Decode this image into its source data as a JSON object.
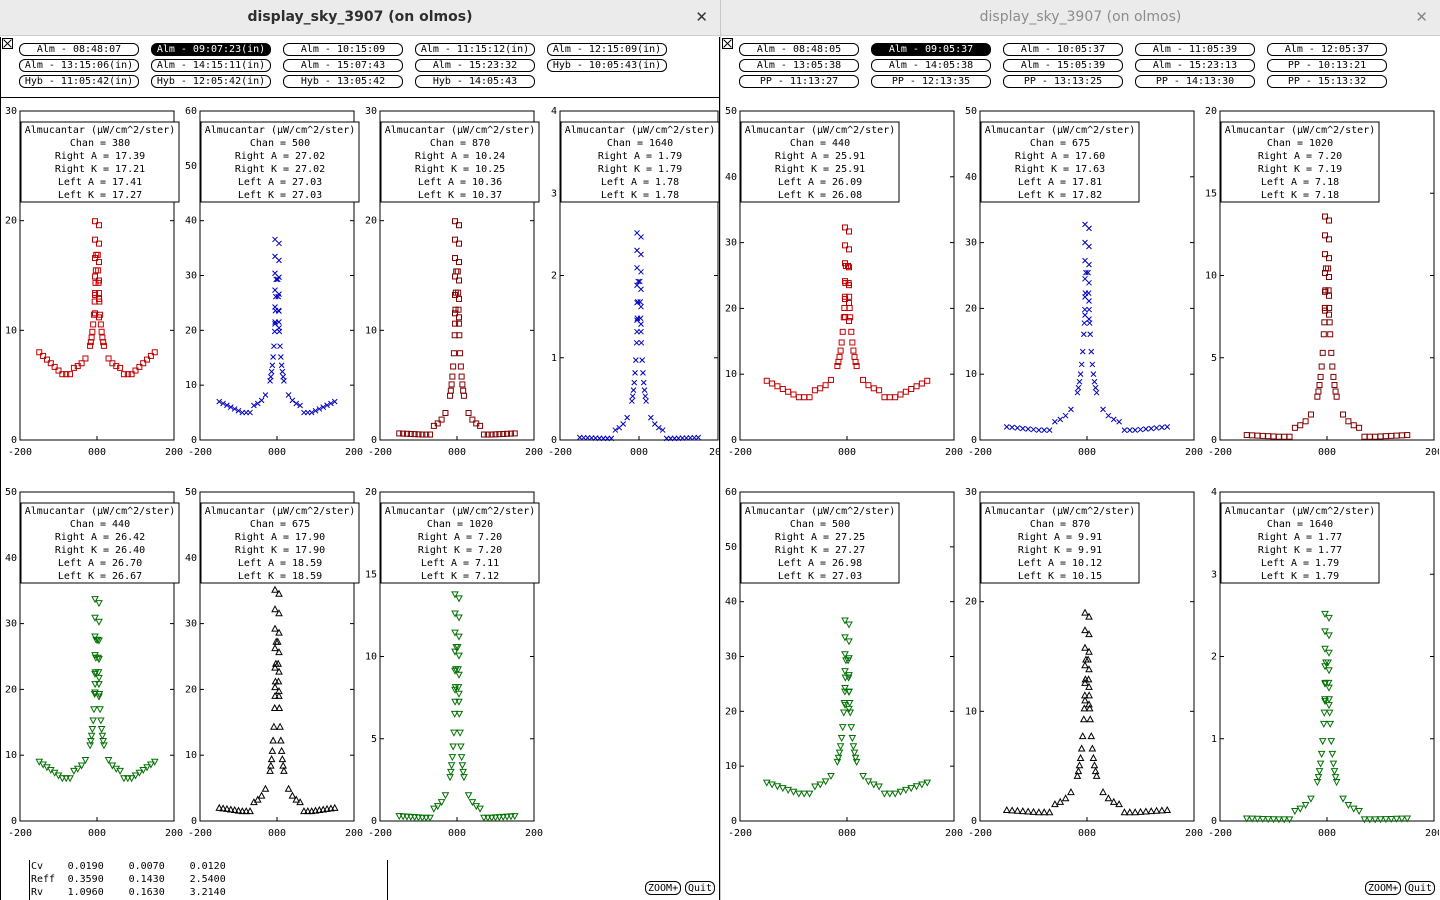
{
  "left": {
    "title": "display_sky_3907 (on olmos)",
    "close": "✕",
    "zoom": "ZOOM+",
    "quit": "Quit",
    "buttons": [
      "Alm - 08:48:07",
      "Alm - 09:07:23(in)",
      "Alm - 10:15:09",
      "Alm - 11:15:12(in)",
      "Alm - 12:15:09(in)",
      "Alm - 13:15:06(in)",
      "Alm - 14:15:11(in)",
      "Alm - 15:07:43",
      "Alm - 15:23:32",
      "Hyb - 10:05:43(in)",
      "Hyb - 11:05:42(in)",
      "Hyb - 12:05:42(in)",
      "Hyb - 13:05:42",
      "Hyb - 14:05:43"
    ],
    "selected": 1,
    "stats": [
      [
        "Cv",
        "0.0190",
        "0.0070",
        "0.0120"
      ],
      [
        "Reff",
        "0.3590",
        "0.1430",
        "2.5400"
      ],
      [
        "Rv",
        "1.0960",
        "0.1630",
        "3.2140"
      ]
    ],
    "panels": [
      {
        "chan": "380",
        "ra": "17.39",
        "rk": "17.21",
        "la": "17.41",
        "lk": "17.27",
        "ymax": 30,
        "ticks": [
          0,
          10,
          20,
          30
        ],
        "peak": 21,
        "base": 8,
        "min": 6,
        "color": "#c00000",
        "marker": "square"
      },
      {
        "chan": "500",
        "ra": "27.02",
        "rk": "27.02",
        "la": "27.03",
        "lk": "27.03",
        "ymax": 60,
        "ticks": [
          0,
          10,
          20,
          30,
          40,
          50,
          60
        ],
        "peak": 38.5,
        "base": 7,
        "min": 5,
        "color": "#0000c0",
        "marker": "x"
      },
      {
        "chan": "870",
        "ra": "10.24",
        "rk": "10.25",
        "la": "10.36",
        "lk": "10.37",
        "ymax": 30,
        "ticks": [
          0,
          10,
          20,
          30
        ],
        "peak": 21,
        "base": 0.6,
        "min": 0.5,
        "color": "#800000",
        "marker": "square"
      },
      {
        "chan": "1640",
        "ra": "1.79",
        "rk": "1.79",
        "la": "1.78",
        "lk": "1.78",
        "ymax": 4,
        "ticks": [
          0,
          1,
          2,
          3,
          4
        ],
        "peak": 2.65,
        "base": 0.03,
        "min": 0.02,
        "color": "#0000c0",
        "marker": "x"
      },
      {
        "chan": "440",
        "ra": "26.42",
        "rk": "26.40",
        "la": "26.70",
        "lk": "26.67",
        "ymax": 50,
        "ticks": [
          0,
          10,
          20,
          30,
          40,
          50
        ],
        "peak": 35.5,
        "base": 9,
        "min": 6.5,
        "color": "#007000",
        "marker": "tridown"
      },
      {
        "chan": "675",
        "ra": "17.90",
        "rk": "17.90",
        "la": "18.59",
        "lk": "18.59",
        "ymax": 50,
        "ticks": [
          0,
          10,
          20,
          30,
          40,
          50
        ],
        "peak": 37,
        "base": 2,
        "min": 1.5,
        "color": "#000000",
        "marker": "triup"
      },
      {
        "chan": "1020",
        "ra": "7.20",
        "rk": "7.20",
        "la": "7.11",
        "lk": "7.12",
        "ymax": 20,
        "ticks": [
          0,
          5,
          10,
          15,
          20
        ],
        "peak": 14.5,
        "base": 0.3,
        "min": 0.2,
        "color": "#007000",
        "marker": "tridown"
      }
    ]
  },
  "right": {
    "title": "display_sky_3907 (on olmos)",
    "close": "✕",
    "zoom": "ZOOM+",
    "quit": "Quit",
    "buttons": [
      "Alm - 08:48:05",
      "Alm - 09:05:37",
      "Alm - 10:05:37",
      "Alm - 11:05:39",
      "Alm - 12:05:37",
      "Alm - 13:05:38",
      "Alm - 14:05:38",
      "Alm - 15:05:39",
      "Alm - 15:23:13",
      "PP - 10:13:21",
      "PP - 11:13:27",
      "PP - 12:13:35",
      "PP - 13:13:25",
      "PP - 14:13:30",
      "PP - 15:13:32"
    ],
    "selected": 1,
    "panels": [
      {
        "chan": "440",
        "ra": "25.91",
        "rk": "25.91",
        "la": "26.09",
        "lk": "26.08",
        "ymax": 50,
        "ticks": [
          0,
          10,
          20,
          30,
          40,
          50
        ],
        "peak": 34,
        "base": 9,
        "min": 6.5,
        "color": "#c00000",
        "marker": "square"
      },
      {
        "chan": "675",
        "ra": "17.60",
        "rk": "17.63",
        "la": "17.81",
        "lk": "17.82",
        "ymax": 50,
        "ticks": [
          0,
          10,
          20,
          30,
          40,
          50
        ],
        "peak": 34.5,
        "base": 2,
        "min": 1.5,
        "color": "#0000c0",
        "marker": "x"
      },
      {
        "chan": "1020",
        "ra": "7.20",
        "rk": "7.19",
        "la": "7.18",
        "lk": "7.18",
        "ymax": 20,
        "ticks": [
          0,
          5,
          10,
          15,
          20
        ],
        "peak": 14.3,
        "base": 0.3,
        "min": 0.2,
        "color": "#800000",
        "marker": "square"
      },
      {
        "chan": "500",
        "ra": "27.25",
        "rk": "27.27",
        "la": "26.98",
        "lk": "27.03",
        "ymax": 60,
        "ticks": [
          0,
          10,
          20,
          30,
          40,
          50,
          60
        ],
        "peak": 38.5,
        "base": 7,
        "min": 5,
        "color": "#007000",
        "marker": "tridown"
      },
      {
        "chan": "870",
        "ra": "9.91",
        "rk": "9.91",
        "la": "10.12",
        "lk": "10.15",
        "ymax": 30,
        "ticks": [
          0,
          10,
          20,
          30
        ],
        "peak": 20,
        "base": 1,
        "min": 0.8,
        "color": "#000000",
        "marker": "triup"
      },
      {
        "chan": "1640",
        "ra": "1.77",
        "rk": "1.77",
        "la": "1.79",
        "lk": "1.79",
        "ymax": 4,
        "ticks": [
          0,
          1,
          2,
          3,
          4
        ],
        "peak": 2.65,
        "base": 0.03,
        "min": 0.02,
        "color": "#007000",
        "marker": "tridown"
      }
    ]
  },
  "plot_common": {
    "header": "Almucantar (μW/cm^2/ster)",
    "chan_label": "Chan",
    "ra_label": "Right A",
    "rk_label": "Right K",
    "la_label": "Left A",
    "lk_label": "Left K",
    "x_ticks": [
      "-200",
      "000",
      "200"
    ]
  }
}
